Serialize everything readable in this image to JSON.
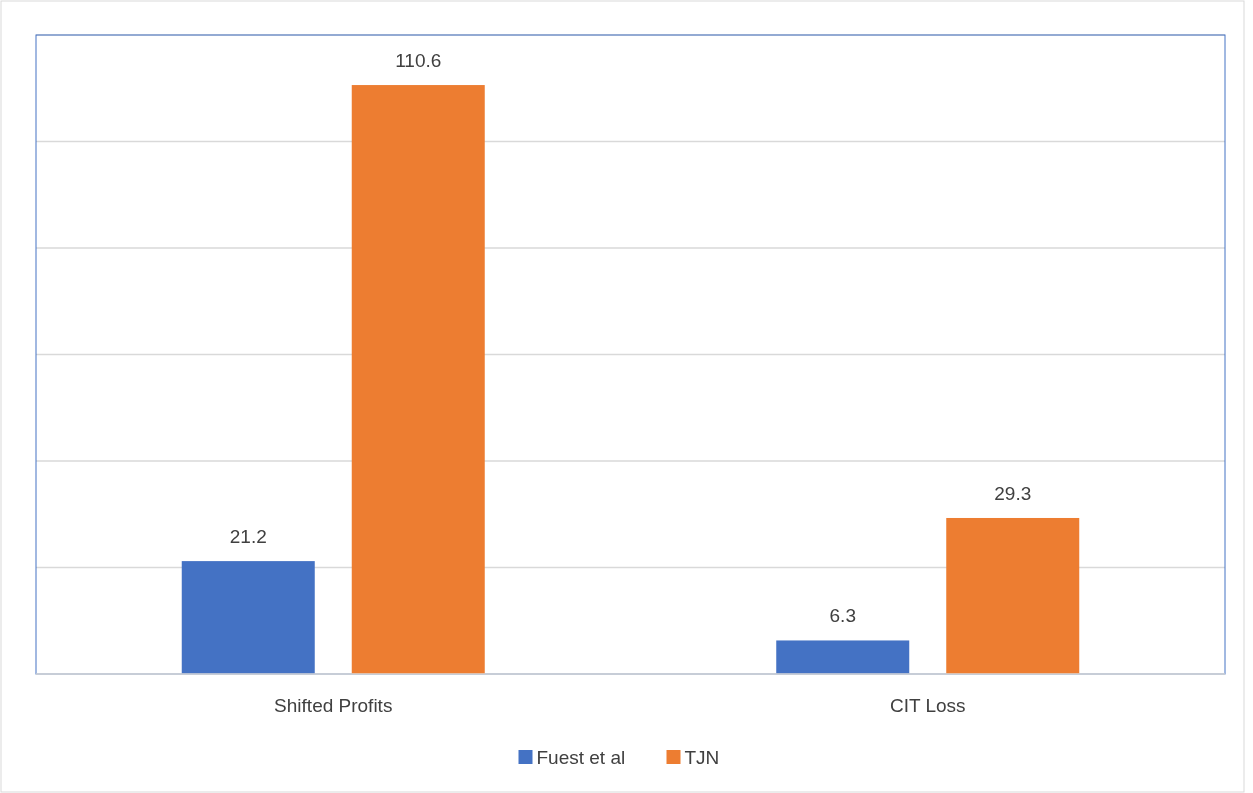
{
  "chart_data": {
    "type": "bar",
    "categories": [
      "Shifted Profits",
      "CIT Loss"
    ],
    "series": [
      {
        "name": "Fuest et al",
        "color": "#4472c4",
        "values": [
          21.2,
          6.3
        ]
      },
      {
        "name": "TJN",
        "color": "#ed7d31",
        "values": [
          110.6,
          29.3
        ]
      }
    ],
    "ylim": [
      0,
      120
    ],
    "yticks": [
      {
        "value": 0,
        "label": null
      },
      {
        "value": 20,
        "label": null
      },
      {
        "value": 40,
        "label": null
      },
      {
        "value": 60,
        "label": null
      },
      {
        "value": 80,
        "label": null
      },
      {
        "value": 100,
        "label": null
      },
      {
        "value": 120,
        "label": null
      }
    ],
    "tick_labels": "x",
    "grid": "y",
    "legend": "bottom",
    "data_labels": true
  }
}
